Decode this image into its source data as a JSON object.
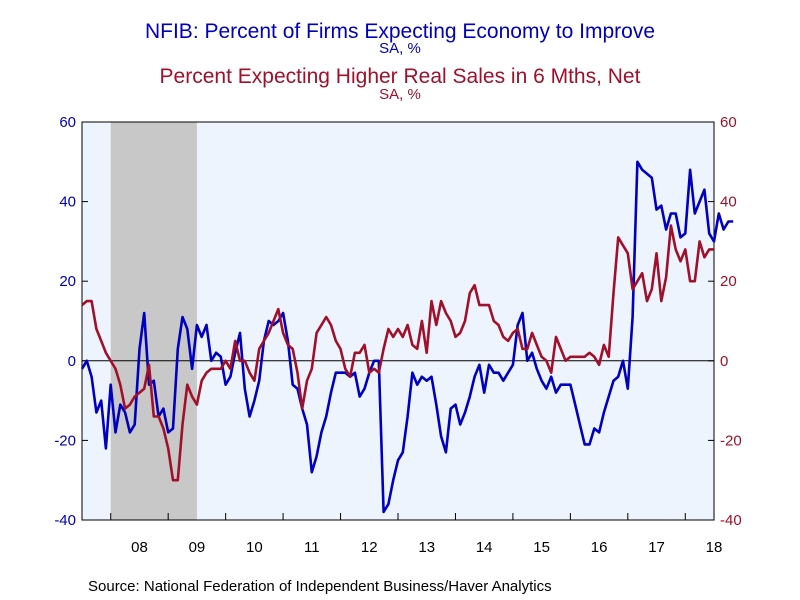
{
  "titles": {
    "line1": "NFIB: Percent of Firms Expecting Economy to Improve",
    "line1_sub": "SA, %",
    "line2": "Percent Expecting Higher Real Sales in 6 Mths, Net",
    "line2_sub": "SA, %"
  },
  "source": "Source:  National Federation of Independent Business/Haver Analytics",
  "colors": {
    "series1": "#0000c0",
    "series2": "#a0102a",
    "plot_bg": "#eef4fd",
    "recession": "#c8c8c8"
  },
  "chart_data": {
    "type": "line",
    "x_start": 2007.5,
    "x_step": 0.0833333,
    "xlim": [
      2007.5,
      2018.5
    ],
    "ylim_left": [
      -40,
      60
    ],
    "ylim_right": [
      -40,
      60
    ],
    "left_ticks": [
      "60",
      "40",
      "20",
      "0",
      "-20",
      "-40"
    ],
    "right_ticks": [
      "60",
      "40",
      "20",
      "0",
      "-20",
      "-40"
    ],
    "tick_values": [
      60,
      40,
      20,
      0,
      -20,
      -40
    ],
    "x_labels": [
      "08",
      "09",
      "10",
      "11",
      "12",
      "13",
      "14",
      "15",
      "16",
      "17",
      "18"
    ],
    "x_label_positions": [
      2008.5,
      2009.5,
      2010.5,
      2011.5,
      2012.5,
      2013.5,
      2014.5,
      2015.5,
      2016.5,
      2017.5,
      2018.5
    ],
    "zero_line": true,
    "recession": [
      2008.0,
      2009.5
    ],
    "series": [
      {
        "axis": "left",
        "values": [
          -2,
          0,
          -4,
          -13,
          -10,
          -22,
          -6,
          -18,
          -11,
          -13,
          -18,
          -16,
          3,
          12,
          -6,
          -5,
          -14,
          -12,
          -18,
          -17,
          3,
          11,
          8,
          -2,
          9,
          6,
          9,
          0,
          2,
          1,
          -6,
          -4,
          2,
          7,
          -7,
          -14,
          -10,
          -5,
          5,
          10,
          9,
          10,
          12,
          5,
          -6,
          -7,
          -12,
          -16,
          -28,
          -24,
          -18,
          -14,
          -8,
          -3,
          -3,
          -3,
          -4,
          -3,
          -9,
          -7,
          -3,
          0,
          0,
          -38,
          -36,
          -30,
          -25,
          -23,
          -14,
          -3,
          -6,
          -4,
          -5,
          -4,
          -11,
          -19,
          -23,
          -12,
          -11,
          -16,
          -13,
          -9,
          -4,
          -1,
          -8,
          -1,
          -3,
          -3,
          -5,
          -3,
          -1,
          9,
          12,
          0,
          2,
          -2,
          -5,
          -7,
          -4,
          -8,
          -6,
          -6,
          -6,
          -11,
          -16,
          -21,
          -21,
          -17,
          -18,
          -13,
          -9,
          -5,
          -4,
          0,
          -7,
          11,
          50,
          48,
          47,
          46,
          38,
          39,
          33,
          37,
          37,
          31,
          32,
          48,
          37,
          40,
          43,
          32,
          30,
          37,
          33,
          35,
          35
        ]
      },
      {
        "axis": "right",
        "values": [
          14,
          15,
          15,
          8,
          5,
          2,
          0,
          -2,
          -6,
          -12,
          -11,
          -9,
          -8,
          -7,
          -1,
          -14,
          -14,
          -17,
          -22,
          -30,
          -30,
          -16,
          -6,
          -9,
          -11,
          -5,
          -3,
          -2,
          -2,
          -2,
          0,
          -2,
          5,
          0,
          0,
          -3,
          -5,
          3,
          5,
          7,
          10,
          13,
          7,
          4,
          3,
          -3,
          -12,
          -5,
          -2,
          7,
          9,
          11,
          9,
          5,
          3,
          -2,
          -4,
          2,
          2,
          4,
          -3,
          -2,
          -3,
          3,
          8,
          6,
          8,
          6,
          9,
          4,
          3,
          10,
          2,
          15,
          9,
          15,
          12,
          10,
          6,
          7,
          10,
          17,
          19,
          14,
          14,
          14,
          10,
          9,
          6,
          5,
          7,
          8,
          3,
          3,
          7,
          4,
          1,
          0,
          -3,
          6,
          3,
          0,
          1,
          1,
          1,
          1,
          2,
          1,
          -1,
          4,
          1,
          17,
          31,
          29,
          27,
          18,
          20,
          22,
          15,
          18,
          27,
          15,
          21,
          34,
          28,
          25,
          28,
          20,
          20,
          30,
          26,
          28,
          28
        ]
      }
    ]
  }
}
